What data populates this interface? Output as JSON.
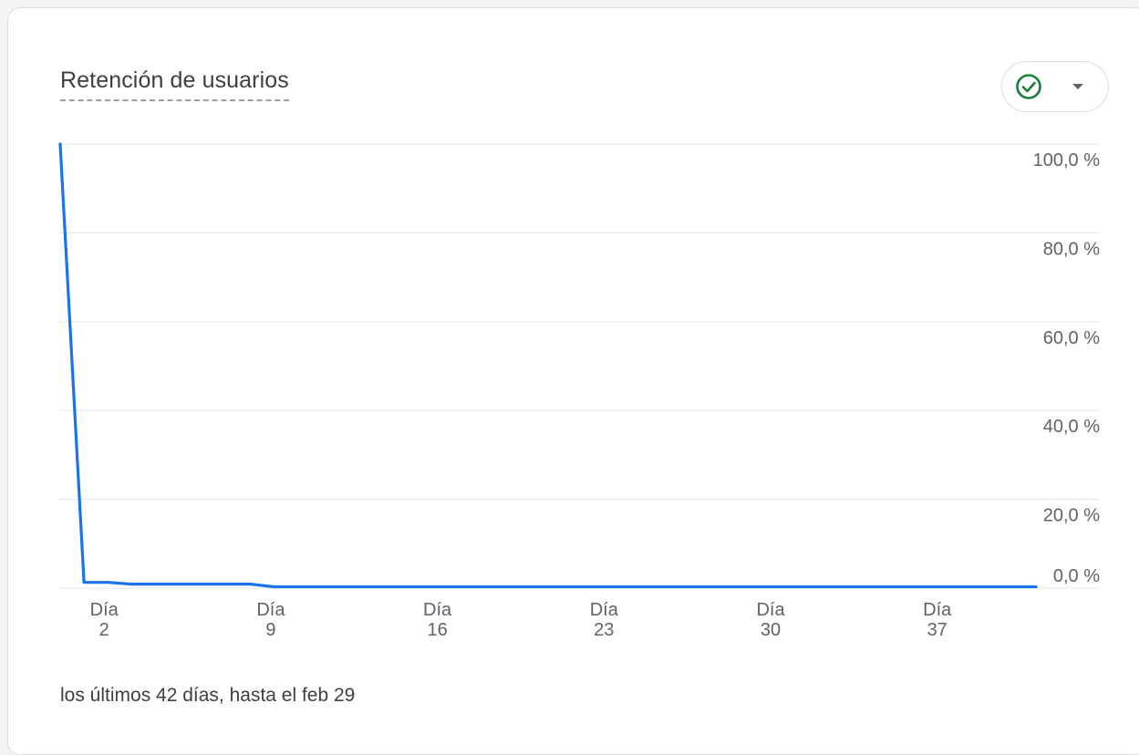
{
  "title": "Retención de usuarios",
  "footer": "los últimos 42 días, hasta el feb 29",
  "colors": {
    "line": "#1a73e8",
    "check": "#188038",
    "grid": "#e8eaed",
    "axis_text": "#5f6368"
  },
  "icons": {
    "status": "check-circle-icon",
    "dropdown": "caret-down-icon"
  },
  "chart_data": {
    "type": "line",
    "title": "Retención de usuarios",
    "xlabel": "",
    "ylabel": "",
    "xlim": [
      0,
      42
    ],
    "ylim": [
      0,
      100
    ],
    "y_ticks": [
      {
        "value": 100,
        "label": "100,0 %"
      },
      {
        "value": 80,
        "label": "80,0 %"
      },
      {
        "value": 60,
        "label": "60,0 %"
      },
      {
        "value": 40,
        "label": "40,0 %"
      },
      {
        "value": 20,
        "label": "20,0 %"
      },
      {
        "value": 0,
        "label": "0,0 %"
      }
    ],
    "x_ticks": [
      {
        "day": 2,
        "line1": "Día",
        "line2": "2"
      },
      {
        "day": 9,
        "line1": "Día",
        "line2": "9"
      },
      {
        "day": 16,
        "line1": "Día",
        "line2": "16"
      },
      {
        "day": 23,
        "line1": "Día",
        "line2": "23"
      },
      {
        "day": 30,
        "line1": "Día",
        "line2": "30"
      },
      {
        "day": 37,
        "line1": "Día",
        "line2": "37"
      }
    ],
    "grid": true,
    "series": [
      {
        "x": [
          0,
          1,
          2,
          3,
          4,
          5,
          6,
          7,
          8,
          9,
          10,
          11,
          12,
          13,
          14,
          15,
          16,
          17,
          18,
          19,
          20,
          21,
          22,
          23,
          24,
          25,
          26,
          27,
          28,
          29,
          30,
          31,
          32,
          33,
          34,
          35,
          36,
          37,
          38,
          39,
          40,
          41
        ],
        "values": [
          100,
          1.3,
          1.3,
          0.9,
          0.9,
          0.9,
          0.9,
          0.9,
          0.9,
          0.3,
          0.3,
          0.3,
          0.3,
          0.3,
          0.3,
          0.3,
          0.3,
          0.3,
          0.3,
          0.3,
          0.3,
          0.3,
          0.3,
          0.3,
          0.3,
          0.3,
          0.3,
          0.3,
          0.3,
          0.3,
          0.3,
          0.3,
          0.3,
          0.3,
          0.3,
          0.3,
          0.3,
          0.3,
          0.3,
          0.3,
          0.3,
          0.3
        ]
      }
    ]
  }
}
